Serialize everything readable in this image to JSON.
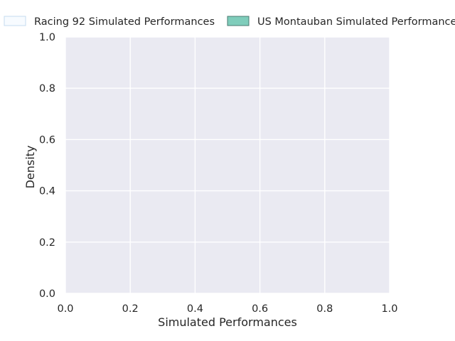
{
  "chart_data": {
    "type": "area",
    "title": "",
    "xlabel": "Simulated Performances",
    "ylabel": "Density",
    "xlim": [
      0.0,
      1.0
    ],
    "ylim": [
      0.0,
      1.0
    ],
    "xticks": [
      0.0,
      0.2,
      0.4,
      0.6,
      0.8,
      1.0
    ],
    "yticks": [
      0.0,
      0.2,
      0.4,
      0.6,
      0.8,
      1.0
    ],
    "xtick_labels": [
      "0.0",
      "0.2",
      "0.4",
      "0.6",
      "0.8",
      "1.0"
    ],
    "ytick_labels": [
      "0.0",
      "0.2",
      "0.4",
      "0.6",
      "0.8",
      "1.0"
    ],
    "grid": true,
    "legend_position": "top",
    "background_color": "#eaeaf2",
    "grid_color": "#ffffff",
    "series": [
      {
        "name": "Racing 92 Simulated Performances",
        "color": "#f7fbff",
        "edge_color": "#c6dbef",
        "values": []
      },
      {
        "name": "US Montauban Simulated Performances",
        "color": "#7fcdbb",
        "edge_color": "#4a7a70",
        "values": []
      }
    ]
  }
}
